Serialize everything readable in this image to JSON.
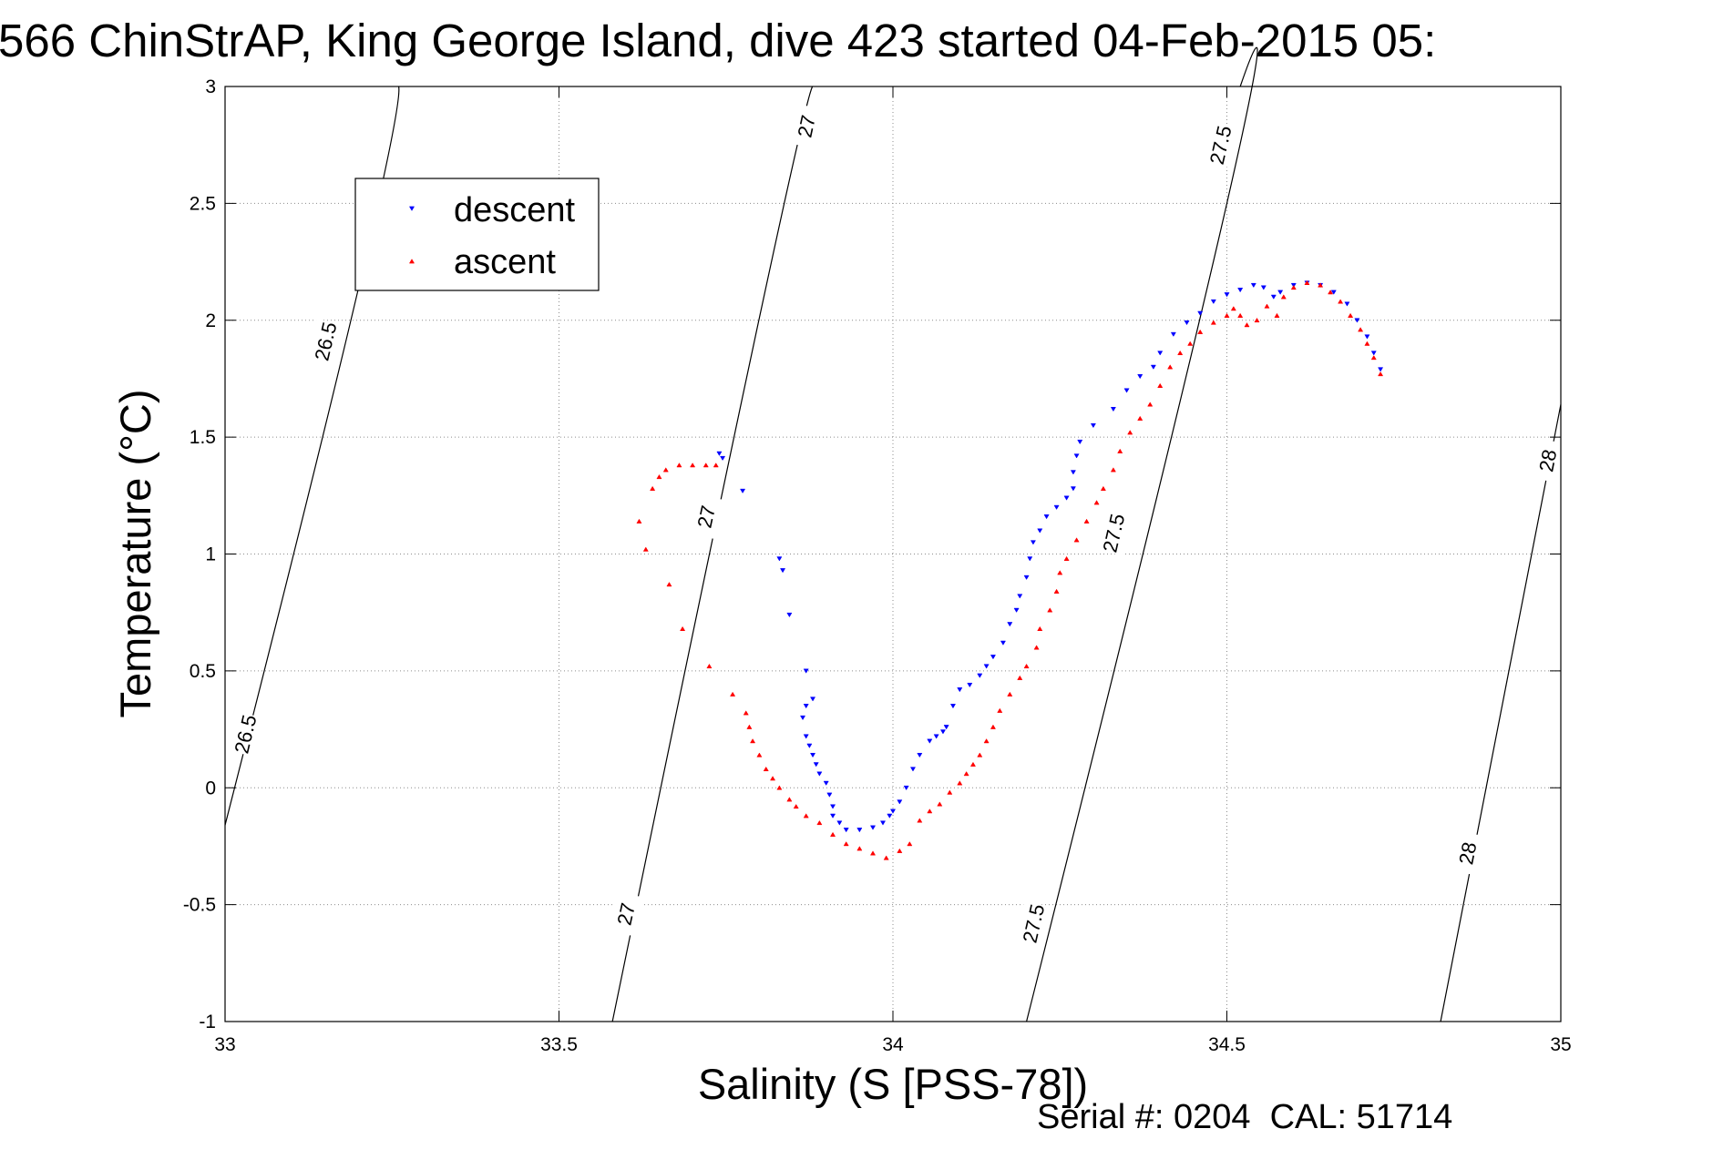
{
  "chart_data": {
    "type": "scatter",
    "title": "566 ChinStrAP, King George Island, dive 423 started 04-Feb-2015 05:",
    "xlabel": "Salinity (S [PSS-78])",
    "ylabel": "Temperature (°C)",
    "xlim": [
      33,
      35
    ],
    "ylim": [
      -1,
      3
    ],
    "xticks": [
      33,
      33.5,
      34,
      34.5,
      35
    ],
    "yticks": [
      -1,
      -0.5,
      0,
      0.5,
      1,
      1.5,
      2,
      2.5,
      3
    ],
    "xtick_labels": [
      "33",
      "33.5",
      "34",
      "34.5",
      "35"
    ],
    "ytick_labels": [
      "-1",
      "-0.5",
      "0",
      "0.5",
      "1",
      "1.5",
      "2",
      "2.5",
      "3"
    ],
    "grid": true,
    "legend_position": "top-left",
    "footer": "Serial #: 0204  CAL: 51714",
    "series": [
      {
        "name": "descent",
        "marker": "triangle-down",
        "color": "#0000ff",
        "points": [
          [
            33.74,
            1.43
          ],
          [
            33.745,
            1.41
          ],
          [
            33.775,
            1.27
          ],
          [
            33.83,
            0.98
          ],
          [
            33.835,
            0.93
          ],
          [
            33.845,
            0.74
          ],
          [
            33.87,
            0.5
          ],
          [
            33.88,
            0.38
          ],
          [
            33.87,
            0.35
          ],
          [
            33.865,
            0.3
          ],
          [
            33.87,
            0.22
          ],
          [
            33.875,
            0.18
          ],
          [
            33.88,
            0.14
          ],
          [
            33.885,
            0.1
          ],
          [
            33.89,
            0.06
          ],
          [
            33.9,
            0.02
          ],
          [
            33.905,
            -0.03
          ],
          [
            33.91,
            -0.08
          ],
          [
            33.91,
            -0.12
          ],
          [
            33.92,
            -0.15
          ],
          [
            33.93,
            -0.18
          ],
          [
            33.95,
            -0.18
          ],
          [
            33.97,
            -0.17
          ],
          [
            33.985,
            -0.15
          ],
          [
            33.995,
            -0.12
          ],
          [
            34.0,
            -0.1
          ],
          [
            34.01,
            -0.06
          ],
          [
            34.02,
            0.0
          ],
          [
            34.03,
            0.08
          ],
          [
            34.04,
            0.14
          ],
          [
            34.055,
            0.2
          ],
          [
            34.065,
            0.22
          ],
          [
            34.075,
            0.24
          ],
          [
            34.08,
            0.26
          ],
          [
            34.09,
            0.35
          ],
          [
            34.1,
            0.42
          ],
          [
            34.115,
            0.44
          ],
          [
            34.13,
            0.48
          ],
          [
            34.14,
            0.52
          ],
          [
            34.15,
            0.56
          ],
          [
            34.165,
            0.62
          ],
          [
            34.175,
            0.7
          ],
          [
            34.185,
            0.76
          ],
          [
            34.19,
            0.82
          ],
          [
            34.2,
            0.9
          ],
          [
            34.205,
            0.98
          ],
          [
            34.21,
            1.05
          ],
          [
            34.22,
            1.1
          ],
          [
            34.23,
            1.16
          ],
          [
            34.245,
            1.2
          ],
          [
            34.26,
            1.24
          ],
          [
            34.27,
            1.28
          ],
          [
            34.27,
            1.35
          ],
          [
            34.275,
            1.42
          ],
          [
            34.28,
            1.48
          ],
          [
            34.3,
            1.55
          ],
          [
            34.33,
            1.62
          ],
          [
            34.35,
            1.7
          ],
          [
            34.37,
            1.76
          ],
          [
            34.39,
            1.8
          ],
          [
            34.4,
            1.86
          ],
          [
            34.42,
            1.94
          ],
          [
            34.44,
            1.99
          ],
          [
            34.46,
            2.03
          ],
          [
            34.48,
            2.08
          ],
          [
            34.5,
            2.11
          ],
          [
            34.52,
            2.13
          ],
          [
            34.54,
            2.15
          ],
          [
            34.555,
            2.14
          ],
          [
            34.57,
            2.1
          ],
          [
            34.58,
            2.12
          ],
          [
            34.6,
            2.15
          ],
          [
            34.62,
            2.16
          ],
          [
            34.64,
            2.15
          ],
          [
            34.66,
            2.12
          ],
          [
            34.68,
            2.07
          ],
          [
            34.695,
            2.0
          ],
          [
            34.71,
            1.93
          ],
          [
            34.72,
            1.86
          ],
          [
            34.73,
            1.79
          ]
        ]
      },
      {
        "name": "ascent",
        "marker": "triangle-up",
        "color": "#ff0000",
        "points": [
          [
            33.735,
            1.38
          ],
          [
            33.72,
            1.38
          ],
          [
            33.7,
            1.38
          ],
          [
            33.68,
            1.38
          ],
          [
            33.66,
            1.36
          ],
          [
            33.65,
            1.33
          ],
          [
            33.64,
            1.28
          ],
          [
            33.62,
            1.14
          ],
          [
            33.63,
            1.02
          ],
          [
            33.665,
            0.87
          ],
          [
            33.685,
            0.68
          ],
          [
            33.725,
            0.52
          ],
          [
            33.76,
            0.4
          ],
          [
            33.78,
            0.32
          ],
          [
            33.785,
            0.26
          ],
          [
            33.79,
            0.2
          ],
          [
            33.8,
            0.14
          ],
          [
            33.81,
            0.08
          ],
          [
            33.82,
            0.04
          ],
          [
            33.83,
            0.0
          ],
          [
            33.845,
            -0.05
          ],
          [
            33.855,
            -0.08
          ],
          [
            33.87,
            -0.12
          ],
          [
            33.89,
            -0.15
          ],
          [
            33.91,
            -0.2
          ],
          [
            33.93,
            -0.24
          ],
          [
            33.95,
            -0.26
          ],
          [
            33.97,
            -0.28
          ],
          [
            33.99,
            -0.3
          ],
          [
            34.01,
            -0.27
          ],
          [
            34.025,
            -0.24
          ],
          [
            34.04,
            -0.14
          ],
          [
            34.055,
            -0.1
          ],
          [
            34.07,
            -0.07
          ],
          [
            34.085,
            -0.02
          ],
          [
            34.1,
            0.02
          ],
          [
            34.11,
            0.06
          ],
          [
            34.12,
            0.1
          ],
          [
            34.13,
            0.14
          ],
          [
            34.14,
            0.2
          ],
          [
            34.15,
            0.26
          ],
          [
            34.16,
            0.33
          ],
          [
            34.175,
            0.4
          ],
          [
            34.19,
            0.47
          ],
          [
            34.2,
            0.52
          ],
          [
            34.215,
            0.6
          ],
          [
            34.22,
            0.68
          ],
          [
            34.235,
            0.76
          ],
          [
            34.245,
            0.84
          ],
          [
            34.25,
            0.92
          ],
          [
            34.26,
            0.98
          ],
          [
            34.275,
            1.06
          ],
          [
            34.29,
            1.14
          ],
          [
            34.305,
            1.22
          ],
          [
            34.315,
            1.28
          ],
          [
            34.33,
            1.36
          ],
          [
            34.34,
            1.44
          ],
          [
            34.355,
            1.52
          ],
          [
            34.37,
            1.58
          ],
          [
            34.385,
            1.64
          ],
          [
            34.4,
            1.72
          ],
          [
            34.415,
            1.8
          ],
          [
            34.43,
            1.86
          ],
          [
            34.445,
            1.9
          ],
          [
            34.46,
            1.95
          ],
          [
            34.48,
            1.99
          ],
          [
            34.5,
            2.02
          ],
          [
            34.51,
            2.05
          ],
          [
            34.52,
            2.02
          ],
          [
            34.53,
            1.98
          ],
          [
            34.545,
            2.0
          ],
          [
            34.56,
            2.06
          ],
          [
            34.575,
            2.02
          ],
          [
            34.585,
            2.1
          ],
          [
            34.6,
            2.14
          ],
          [
            34.62,
            2.16
          ],
          [
            34.64,
            2.15
          ],
          [
            34.655,
            2.12
          ],
          [
            34.67,
            2.08
          ],
          [
            34.685,
            2.02
          ],
          [
            34.7,
            1.96
          ],
          [
            34.71,
            1.9
          ],
          [
            34.72,
            1.84
          ],
          [
            34.73,
            1.77
          ]
        ]
      }
    ],
    "contours": [
      {
        "level": "26.5",
        "points": [
          [
            33.0,
            -0.16
          ],
          [
            33.2,
            2.14
          ],
          [
            33.26,
            3.0
          ]
        ],
        "labels": [
          {
            "text": "26.5",
            "at": [
              33.03,
              0.23
            ]
          },
          {
            "text": "26.5",
            "at": [
              33.15,
              1.91
            ]
          }
        ]
      },
      {
        "level": "27",
        "points": [
          [
            33.58,
            -1.0
          ],
          [
            33.8,
            2.01
          ],
          [
            33.88,
            3.0
          ]
        ],
        "labels": [
          {
            "text": "27",
            "at": [
              33.6,
              -0.54
            ]
          },
          {
            "text": "27",
            "at": [
              33.72,
              1.16
            ]
          },
          {
            "text": "27",
            "at": [
              33.87,
              2.83
            ]
          }
        ]
      },
      {
        "level": "27.5",
        "points": [
          [
            34.2,
            -1.0
          ],
          [
            34.5,
            2.5
          ],
          [
            34.52,
            3.0
          ]
        ],
        "labels": [
          {
            "text": "27.5",
            "at": [
              34.21,
              -0.58
            ]
          },
          {
            "text": "27.5",
            "at": [
              34.33,
              1.09
            ]
          },
          {
            "text": "27.5",
            "at": [
              34.49,
              2.75
            ]
          }
        ]
      },
      {
        "level": "28",
        "points": [
          [
            34.82,
            -1.0
          ],
          [
            35.0,
            1.64
          ]
        ],
        "labels": [
          {
            "text": "28",
            "at": [
              34.86,
              -0.28
            ]
          },
          {
            "text": "28",
            "at": [
              34.98,
              1.4
            ]
          }
        ]
      }
    ]
  }
}
